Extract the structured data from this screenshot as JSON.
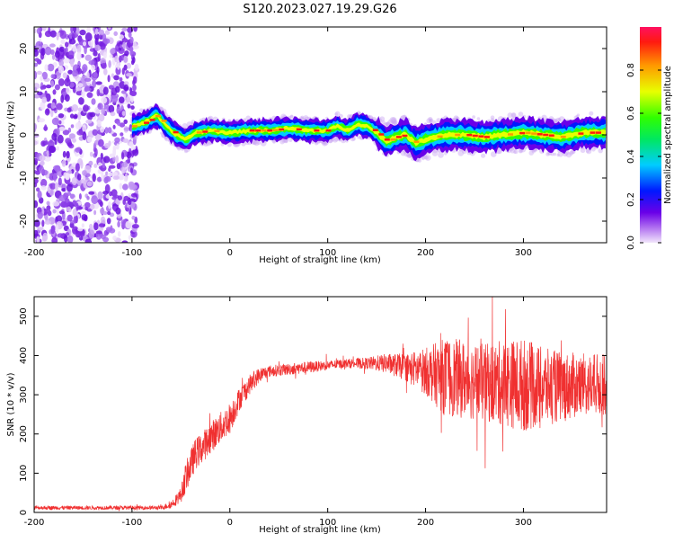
{
  "title": "S120.2023.027.19.29.G26",
  "chart_data": [
    {
      "type": "heatmap",
      "xlabel": "Height of straight line (km)",
      "ylabel": "Frequency (Hz)",
      "xlim": [
        -200,
        385
      ],
      "ylim": [
        -25,
        25
      ],
      "x_ticks": [
        -200,
        -100,
        0,
        100,
        200,
        300
      ],
      "y_ticks": [
        -20,
        -10,
        0,
        10,
        20
      ],
      "colorbar": {
        "label": "Normalized spectral amplitude",
        "range": [
          0,
          1
        ],
        "ticks": [
          0.0,
          0.2,
          0.4,
          0.6,
          0.8
        ]
      },
      "ridge": {
        "x": [
          -100,
          -85,
          -75,
          -65,
          -55,
          -45,
          -35,
          -20,
          0,
          20,
          40,
          60,
          80,
          100,
          110,
          120,
          130,
          140,
          150,
          160,
          170,
          180,
          190,
          200,
          220,
          240,
          260,
          280,
          300,
          320,
          340,
          360,
          385
        ],
        "freq": [
          2,
          3,
          4.5,
          2,
          0,
          -1,
          0.5,
          1,
          0.5,
          1,
          1,
          1.5,
          1,
          1,
          2,
          1,
          2.5,
          2,
          0.5,
          -1.5,
          -0.5,
          0,
          -2,
          -1,
          0,
          0,
          -0.5,
          0,
          0.5,
          0,
          -0.5,
          0.5,
          0.5
        ]
      },
      "noise_region_x": [
        -200,
        -95
      ]
    },
    {
      "type": "line",
      "xlabel": "Height of straight line (km)",
      "ylabel": "SNR (10 * v/v)",
      "xlim": [
        -200,
        385
      ],
      "ylim": [
        0,
        550
      ],
      "x_ticks": [
        -200,
        -100,
        0,
        100,
        200,
        300
      ],
      "y_ticks": [
        0,
        100,
        200,
        300,
        400,
        500
      ],
      "color": "#f03030",
      "x": [
        -200,
        -150,
        -100,
        -70,
        -60,
        -50,
        -45,
        -40,
        -35,
        -30,
        -20,
        -10,
        0,
        10,
        20,
        30,
        40,
        60,
        80,
        100,
        120,
        140,
        160,
        180,
        200,
        220,
        240,
        260,
        280,
        300,
        320,
        340,
        360,
        385
      ],
      "y": [
        12,
        12,
        12,
        12,
        20,
        45,
        90,
        120,
        150,
        160,
        190,
        215,
        240,
        290,
        325,
        350,
        360,
        365,
        370,
        375,
        380,
        380,
        380,
        370,
        360,
        345,
        340,
        330,
        330,
        325,
        320,
        320,
        325,
        325
      ],
      "spread": [
        5,
        5,
        5,
        5,
        10,
        20,
        40,
        40,
        40,
        40,
        40,
        40,
        40,
        30,
        25,
        20,
        15,
        15,
        15,
        12,
        12,
        15,
        25,
        35,
        60,
        100,
        100,
        100,
        110,
        120,
        100,
        90,
        80,
        80
      ]
    }
  ]
}
